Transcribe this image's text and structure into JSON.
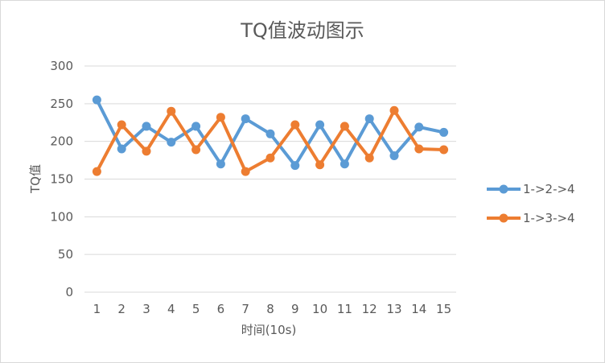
{
  "chart_data": {
    "type": "line",
    "title": "TQ值波动图示",
    "xlabel": "时间(10s)",
    "ylabel": "TQ值",
    "categories": [
      "1",
      "2",
      "3",
      "4",
      "5",
      "6",
      "7",
      "8",
      "9",
      "10",
      "11",
      "12",
      "13",
      "14",
      "15"
    ],
    "ylim": [
      0,
      300
    ],
    "yticks": [
      "0",
      "50",
      "100",
      "150",
      "200",
      "250",
      "300"
    ],
    "grid": true,
    "legend": "right",
    "series": [
      {
        "name": "1->2->4",
        "color": "#5b9bd5",
        "values": [
          255,
          190,
          220,
          199,
          220,
          170,
          230,
          210,
          168,
          222,
          170,
          230,
          181,
          219,
          212
        ]
      },
      {
        "name": "1->3->4",
        "color": "#ed7d31",
        "values": [
          160,
          222,
          187,
          240,
          189,
          232,
          160,
          178,
          222,
          169,
          220,
          178,
          241,
          190,
          189
        ]
      }
    ]
  }
}
